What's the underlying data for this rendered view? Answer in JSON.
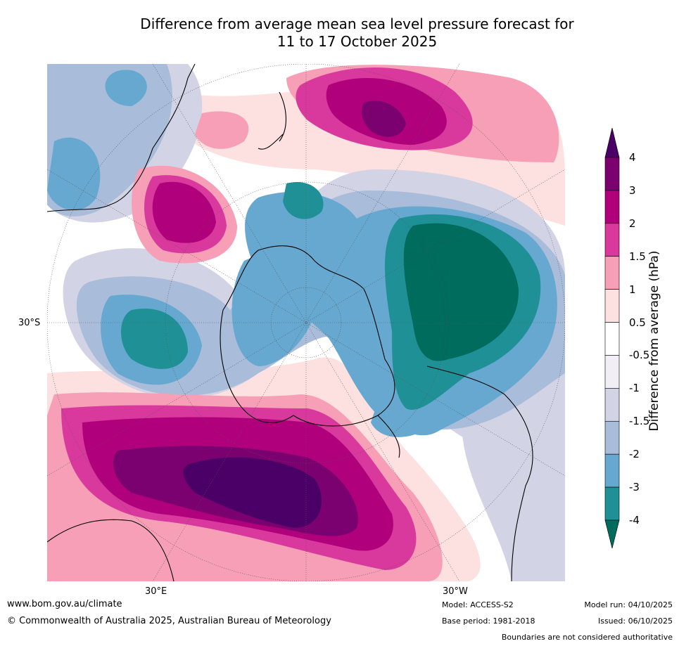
{
  "title": {
    "line1": "Difference from average mean sea level pressure forecast for",
    "line2": "11 to 17 October 2025"
  },
  "map": {
    "projection": "south-polar-stereographic",
    "lat_label_left": "30°S",
    "lon_label_left": "30°E",
    "lon_label_right": "30°W"
  },
  "colorbar": {
    "label": "Difference from average (hPa)",
    "ticks": [
      "4",
      "3",
      "2",
      "1.5",
      "1",
      "0.5",
      "-0.5",
      "-1",
      "-1.5",
      "-2",
      "-3",
      "-4"
    ],
    "colors": [
      "#4a0066",
      "#7b0070",
      "#b0007c",
      "#d9399d",
      "#f79fb7",
      "#fde0e0",
      "#ffffff",
      "#f2eef5",
      "#d2d4e6",
      "#a9bcd9",
      "#66a8cf",
      "#1f9196",
      "#006c5e"
    ]
  },
  "footer": {
    "website": "www.bom.gov.au/climate",
    "copyright": "© Commonwealth of Australia 2025, Australian Bureau of Meteorology",
    "model": "Model: ACCESS-S2",
    "base_period": "Base period: 1981-2018",
    "model_run": "Model run: 04/10/2025",
    "issued": "Issued: 06/10/2025",
    "disclaimer": "Boundaries are not considered authoritative"
  }
}
